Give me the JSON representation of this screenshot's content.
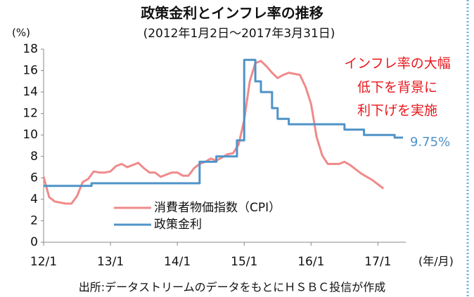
{
  "chart_data": {
    "type": "line",
    "title": "政策金利とインフレ率の推移",
    "subtitle": "(2012年1月2日～2017年3月31日)",
    "y_label": "(%)",
    "x_label": "(年/月)",
    "source": "出所:データストリームのデータをもとにＨＳＢＣ投信が作成",
    "annotations": [
      "インフレ率の大幅",
      "低下を背景に",
      "利下げを実施"
    ],
    "end_label": "9.75%",
    "xlim": [
      0,
      65
    ],
    "ylim": [
      0,
      18
    ],
    "xticks": [
      {
        "value": 0,
        "label": "12/1"
      },
      {
        "value": 12,
        "label": "13/1"
      },
      {
        "value": 24,
        "label": "14/1"
      },
      {
        "value": 36,
        "label": "15/1"
      },
      {
        "value": 48,
        "label": "16/1"
      },
      {
        "value": 60,
        "label": "17/1"
      }
    ],
    "yticks": [
      0,
      2,
      4,
      6,
      8,
      10,
      12,
      14,
      16,
      18
    ],
    "grid": false,
    "series": [
      {
        "name": "消費者物価指数（CPI）",
        "color": "#f08a8a",
        "x": [
          0,
          1,
          2,
          3,
          4,
          5,
          6,
          7,
          8,
          9,
          10,
          11,
          12,
          13,
          14,
          15,
          16,
          17,
          18,
          19,
          20,
          21,
          22,
          23,
          24,
          25,
          26,
          27,
          28,
          29,
          30,
          31,
          32,
          33,
          34,
          35,
          36,
          37,
          38,
          39,
          40,
          41,
          42,
          43,
          44,
          45,
          46,
          47,
          48,
          49,
          50,
          51,
          52,
          53,
          54,
          55,
          56,
          57,
          58,
          59,
          60,
          61
        ],
        "values": [
          6.1,
          4.2,
          3.8,
          3.7,
          3.6,
          3.6,
          4.3,
          5.6,
          5.9,
          6.6,
          6.5,
          6.5,
          6.6,
          7.1,
          7.3,
          7.0,
          7.2,
          7.4,
          6.9,
          6.5,
          6.5,
          6.1,
          6.3,
          6.5,
          6.5,
          6.2,
          6.2,
          6.9,
          7.3,
          7.5,
          7.8,
          7.6,
          7.9,
          8.2,
          8.3,
          9.1,
          11.4,
          15.0,
          16.7,
          16.9,
          16.4,
          15.8,
          15.3,
          15.6,
          15.8,
          15.7,
          15.6,
          14.5,
          12.9,
          9.8,
          8.1,
          7.3,
          7.3,
          7.3,
          7.5,
          7.2,
          6.8,
          6.4,
          6.1,
          5.8,
          5.4,
          5.0
        ]
      },
      {
        "name": "政策金利",
        "color": "#4f93c8",
        "x": [
          0,
          8.6,
          8.6,
          28,
          28,
          31,
          31,
          34.7,
          34.7,
          36,
          36,
          38,
          38,
          39,
          39,
          41,
          41,
          42,
          42,
          44,
          44,
          54,
          54,
          57.5,
          57.5,
          63,
          63,
          64.5
        ],
        "values": [
          5.25,
          5.25,
          5.5,
          5.5,
          7.5,
          7.5,
          8,
          8,
          9.5,
          9.5,
          17,
          17,
          15,
          15,
          14,
          14,
          12.5,
          12.5,
          11.5,
          11.5,
          11,
          11,
          10.5,
          10.5,
          10,
          10,
          9.75,
          9.75
        ]
      }
    ]
  }
}
